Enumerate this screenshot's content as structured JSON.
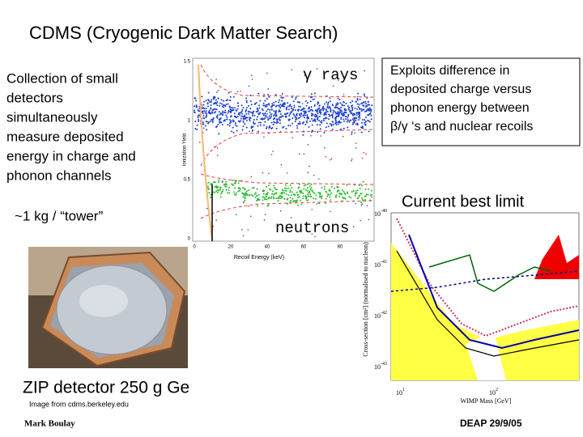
{
  "slide": {
    "title": "CDMS (Cryogenic Dark Matter Search)",
    "description": [
      "Collection of small",
      "detectors",
      "simultaneously",
      "measure deposited",
      "energy in charge and",
      "phonon channels"
    ],
    "mass": "~1 kg / “tower”",
    "photo_caption": "ZIP detector   250 g Ge",
    "photo_credit": "Image from cdms.berkeley.edu",
    "author": "Mark Boulay",
    "event": "DEAP 29/9/05",
    "callout": [
      "Exploits difference in",
      "deposited charge versus",
      "phonon energy between",
      "β/γ ‘s and nuclear recoils"
    ],
    "limit_title": "Current best limit"
  },
  "yield_plot": {
    "gamma_label": "γ rays",
    "neutron_label": "neutrons",
    "y_label": "Ionization Yield",
    "x_label": "Recoil Energy (keV)",
    "y_tick_labels": [
      "1.5",
      "1",
      "0.5",
      "0"
    ],
    "x_tick_labels": [
      "0",
      "20",
      "40",
      "60",
      "80"
    ]
  },
  "limit_plot": {
    "y_label": "Cross-section [cm²] (normalised to nucleon)",
    "x_label": "WIMP Mass [GeV]",
    "y_tick_labels": [
      {
        "base": "10",
        "exp": "-40"
      },
      {
        "base": "10",
        "exp": "-41"
      },
      {
        "base": "10",
        "exp": "-42"
      },
      {
        "base": "10",
        "exp": "-43"
      }
    ],
    "x_tick_labels": [
      {
        "base": "10",
        "exp": "1"
      },
      {
        "base": "10",
        "exp": "2"
      }
    ]
  }
}
